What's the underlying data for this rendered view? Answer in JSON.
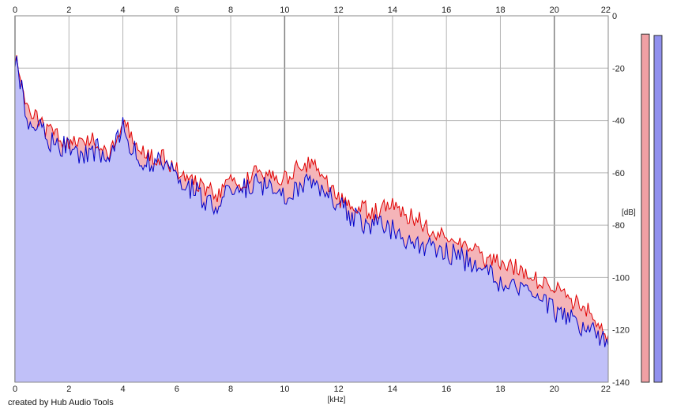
{
  "credit": "created by Hub Audio Tools",
  "colors": {
    "left_line": "#e00000",
    "right_line": "#0000c8",
    "left_fill": "#f4b4b8",
    "right_fill": "#c0c0f8",
    "grid": "#b4b4b4",
    "grid_major": "#808080",
    "left_meter": "#f0a0a4",
    "right_meter": "#9090ee"
  },
  "chart_data": {
    "type": "area",
    "xlabel": "[kHz]",
    "ylabel": "[dB]",
    "xlim": [
      0,
      22
    ],
    "ylim": [
      -140,
      0
    ],
    "x_ticks": [
      "0",
      "2",
      "4",
      "6",
      "8",
      "10",
      "12",
      "14",
      "16",
      "18",
      "20",
      "22"
    ],
    "y_ticks": [
      "0",
      "-20",
      "-40",
      "-60",
      "-80",
      "-100",
      "-120",
      "-140"
    ],
    "grid": true,
    "x": [
      0,
      0.5,
      1,
      1.5,
      2,
      2.5,
      3,
      3.5,
      4,
      4.5,
      5,
      5.5,
      6,
      6.5,
      7,
      7.5,
      8,
      8.5,
      9,
      9.5,
      10,
      10.5,
      11,
      11.5,
      12,
      12.5,
      13,
      13.5,
      14,
      14.5,
      15,
      15.5,
      16,
      16.5,
      17,
      17.5,
      18,
      18.5,
      19,
      19.5,
      20,
      20.5,
      21,
      21.5,
      22
    ],
    "series": [
      {
        "values": [
          -16,
          -36,
          -42,
          -46,
          -48,
          -50,
          -47,
          -52,
          -40,
          -48,
          -54,
          -54,
          -59,
          -62,
          -66,
          -68,
          -64,
          -63,
          -60,
          -62,
          -62,
          -58,
          -56,
          -62,
          -70,
          -73,
          -74,
          -75,
          -70,
          -76,
          -78,
          -82,
          -84,
          -88,
          -90,
          -94,
          -94,
          -96,
          -99,
          -102,
          -104,
          -108,
          -111,
          -115,
          -122
        ]
      },
      {
        "values": [
          -16,
          -40,
          -44,
          -50,
          -49,
          -55,
          -51,
          -54,
          -43,
          -53,
          -56,
          -57,
          -62,
          -66,
          -70,
          -72,
          -67,
          -66,
          -63,
          -66,
          -68,
          -65,
          -63,
          -66,
          -72,
          -77,
          -80,
          -80,
          -82,
          -86,
          -88,
          -88,
          -90,
          -92,
          -95,
          -97,
          -102,
          -104,
          -107,
          -110,
          -113,
          -115,
          -118,
          -120,
          -126
        ]
      }
    ],
    "meters": [
      -7,
      -7.5
    ]
  }
}
